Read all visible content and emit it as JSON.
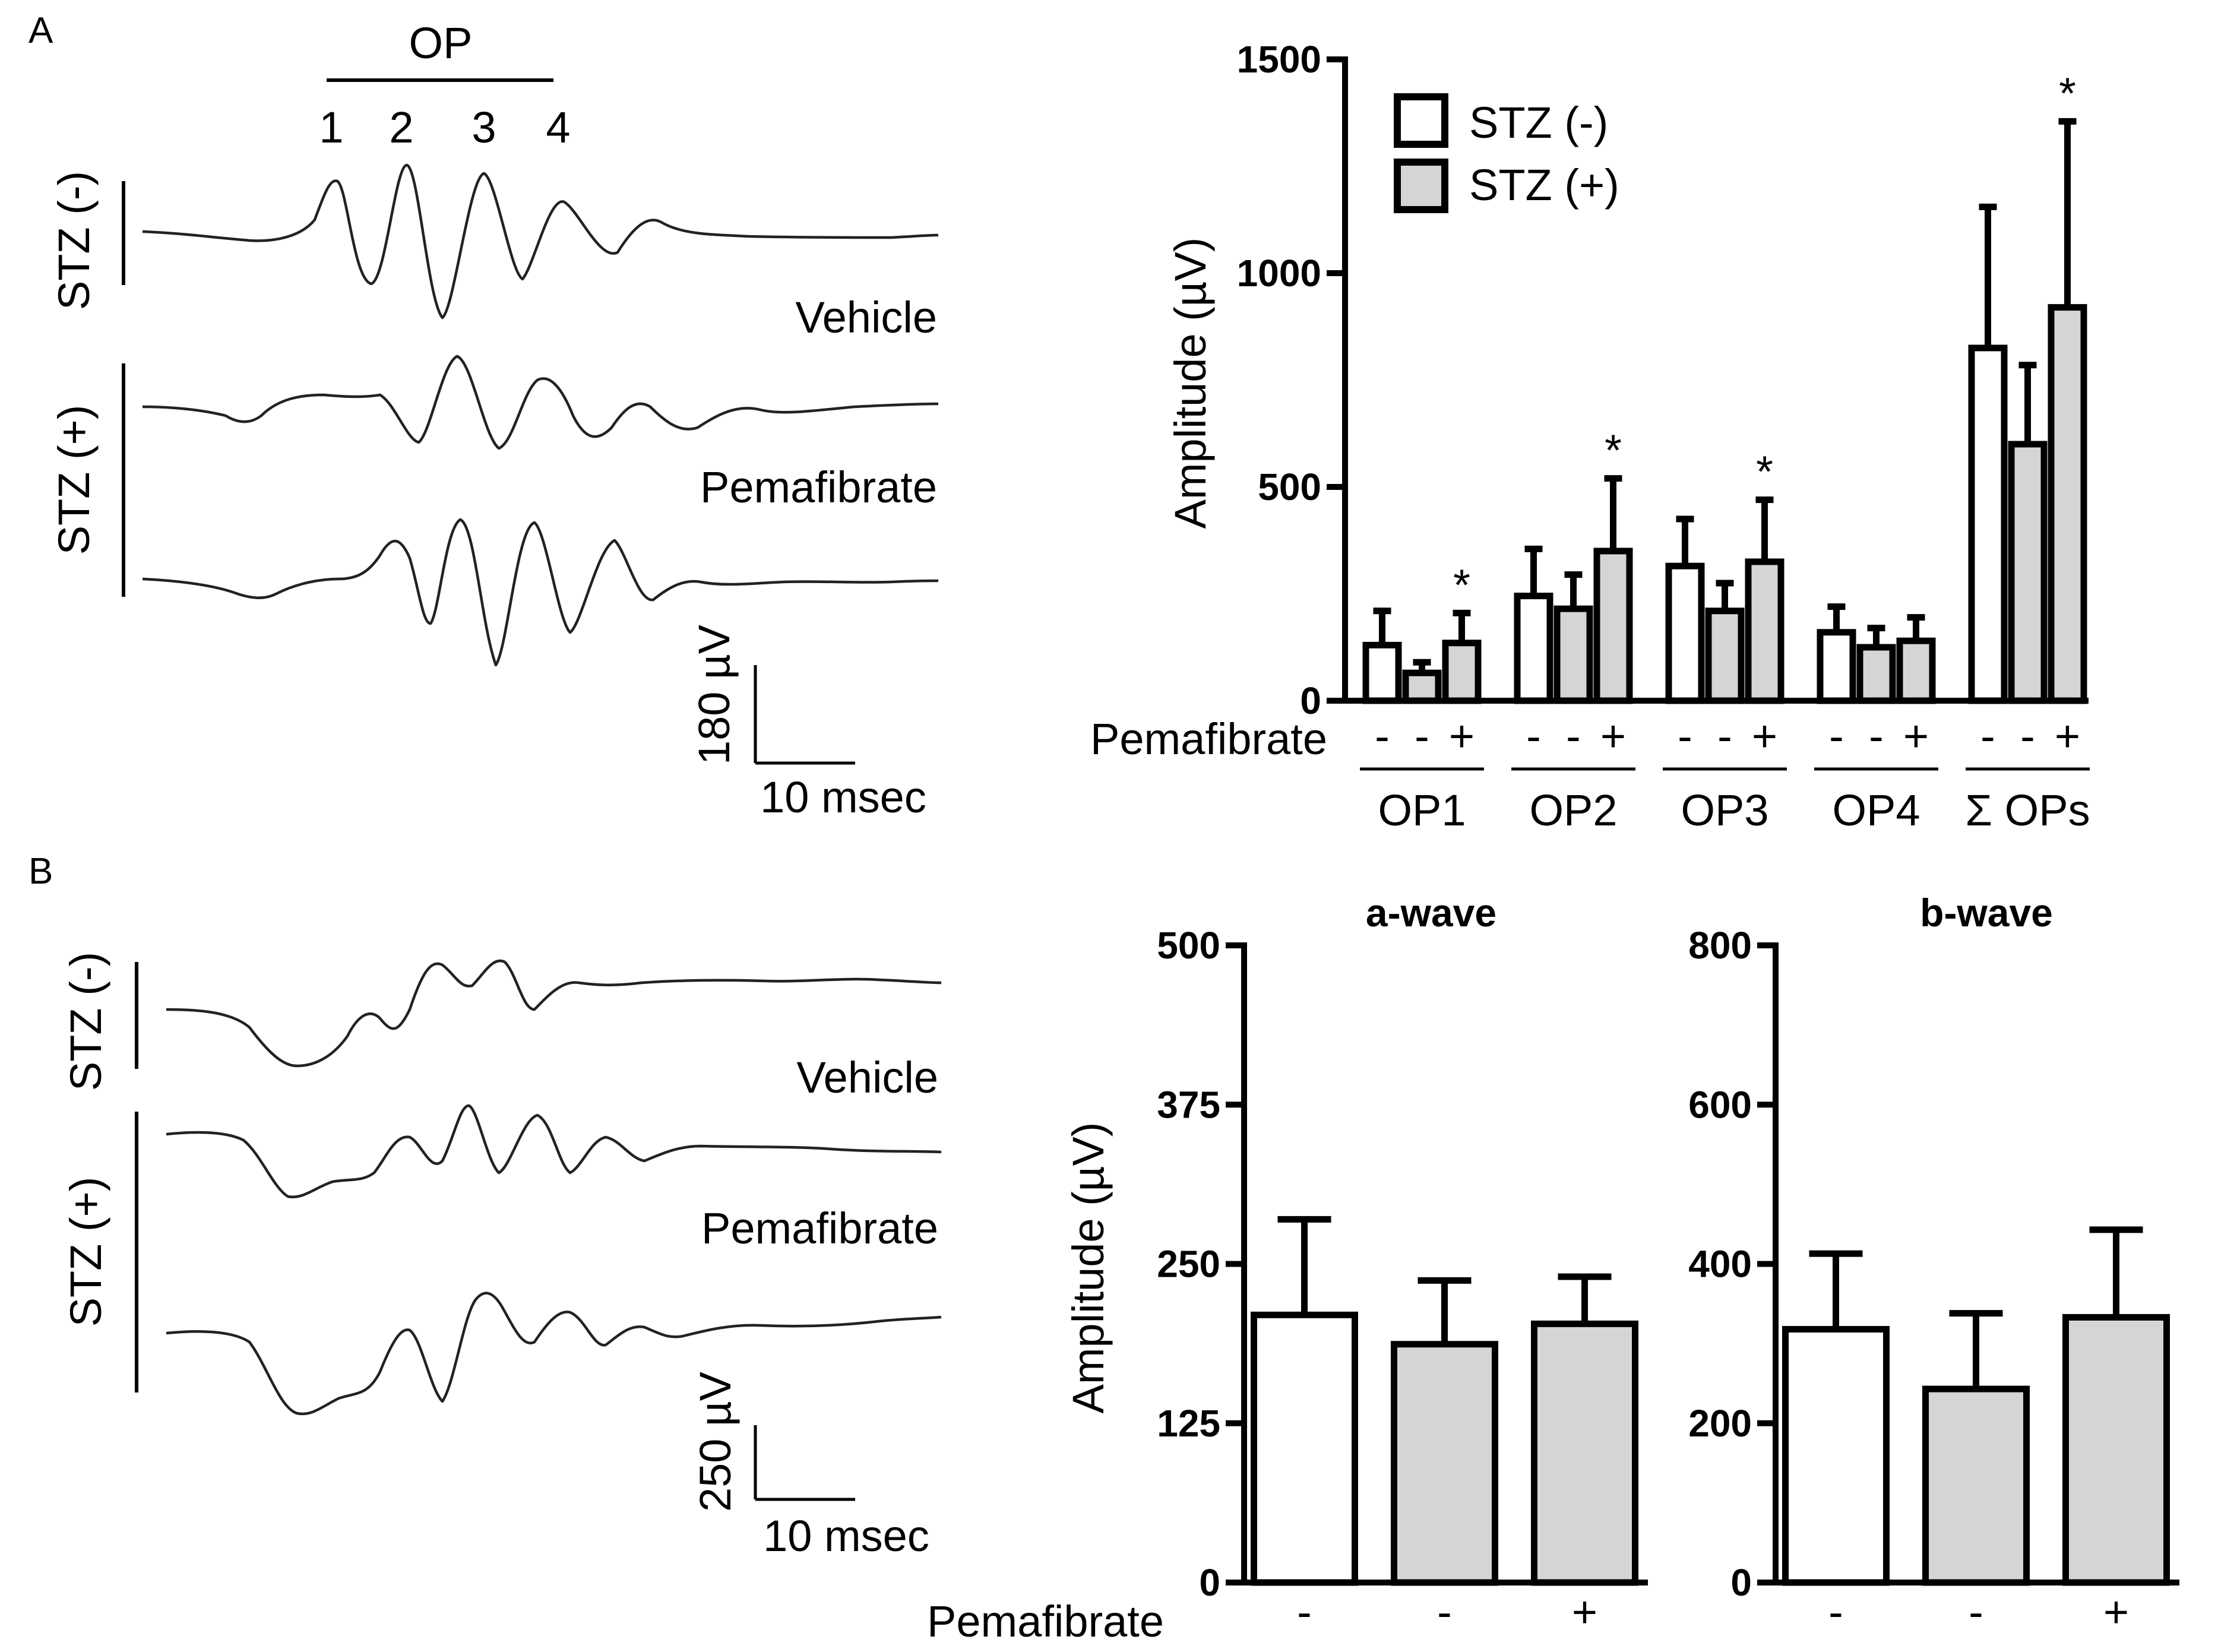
{
  "panel_labels": {
    "a": "A",
    "b": "B"
  },
  "colors": {
    "stz_minus_fill": "#ffffff",
    "stz_plus_fill": "#d4d6d5",
    "ink": "#000000"
  },
  "panelA_traces": {
    "op_header": "OP",
    "op_numbers": [
      "1",
      "2",
      "3",
      "4"
    ],
    "group_minus": "STZ (-)",
    "group_plus": "STZ (+)",
    "treatment_vehicle": "Vehicle",
    "treatment_pemafibrate": "Pemafibrate",
    "scale_voltage": "180 µV",
    "scale_time": "10 msec"
  },
  "panelB_traces": {
    "group_minus": "STZ (-)",
    "group_plus": "STZ (+)",
    "treatment_vehicle": "Vehicle",
    "treatment_pemafibrate": "Pemafibrate",
    "scale_voltage": "250 µV",
    "scale_time": "10 msec"
  },
  "chart_data": [
    {
      "type": "bar",
      "title": "",
      "ylabel": "Amplitude (µV)",
      "xlabel": "",
      "ylim": [
        0,
        1500
      ],
      "yticks": [
        "0",
        "500",
        "1000",
        "1500"
      ],
      "treatment_row_label": "Pemafibrate",
      "treatment_marks": [
        "-",
        "-",
        "+"
      ],
      "categories": [
        "OP1",
        "OP2",
        "OP3",
        "OP4",
        "Σ OPs"
      ],
      "legend": [
        "STZ (-)",
        "STZ (+)"
      ],
      "legend_position": "top-left",
      "series": [
        {
          "name": "STZ (-) Vehicle",
          "values": [
            130,
            245,
            315,
            160,
            825
          ],
          "errors": [
            80,
            110,
            110,
            60,
            330
          ]
        },
        {
          "name": "STZ (+) Vehicle",
          "values": [
            65,
            215,
            210,
            125,
            600
          ],
          "errors": [
            25,
            80,
            65,
            45,
            185
          ]
        },
        {
          "name": "STZ (+) Pemafibrate",
          "values": [
            135,
            350,
            325,
            140,
            920
          ],
          "errors": [
            70,
            170,
            145,
            55,
            435
          ]
        }
      ],
      "significance": [
        "*",
        "*",
        "*",
        "",
        "*"
      ]
    },
    {
      "type": "bar",
      "title": "a-wave",
      "ylabel": "Amplitude (µV)",
      "ylim": [
        0,
        500
      ],
      "yticks": [
        "0",
        "125",
        "250",
        "375",
        "500"
      ],
      "treatment_row_label": "Pemafibrate",
      "categories": [
        "-",
        "-",
        "+"
      ],
      "series": [
        {
          "name": "Amplitude",
          "values": [
            210,
            187,
            203
          ],
          "errors": [
            75,
            50,
            37
          ],
          "groups": [
            "STZ (-)",
            "STZ (+)",
            "STZ (+)"
          ]
        }
      ]
    },
    {
      "type": "bar",
      "title": "b-wave",
      "ylabel": "",
      "ylim": [
        0,
        800
      ],
      "yticks": [
        "0",
        "200",
        "400",
        "600",
        "800"
      ],
      "categories": [
        "-",
        "-",
        "+"
      ],
      "series": [
        {
          "name": "Amplitude",
          "values": [
            318,
            243,
            333
          ],
          "errors": [
            95,
            95,
            110
          ],
          "groups": [
            "STZ (-)",
            "STZ (+)",
            "STZ (+)"
          ]
        }
      ]
    }
  ]
}
